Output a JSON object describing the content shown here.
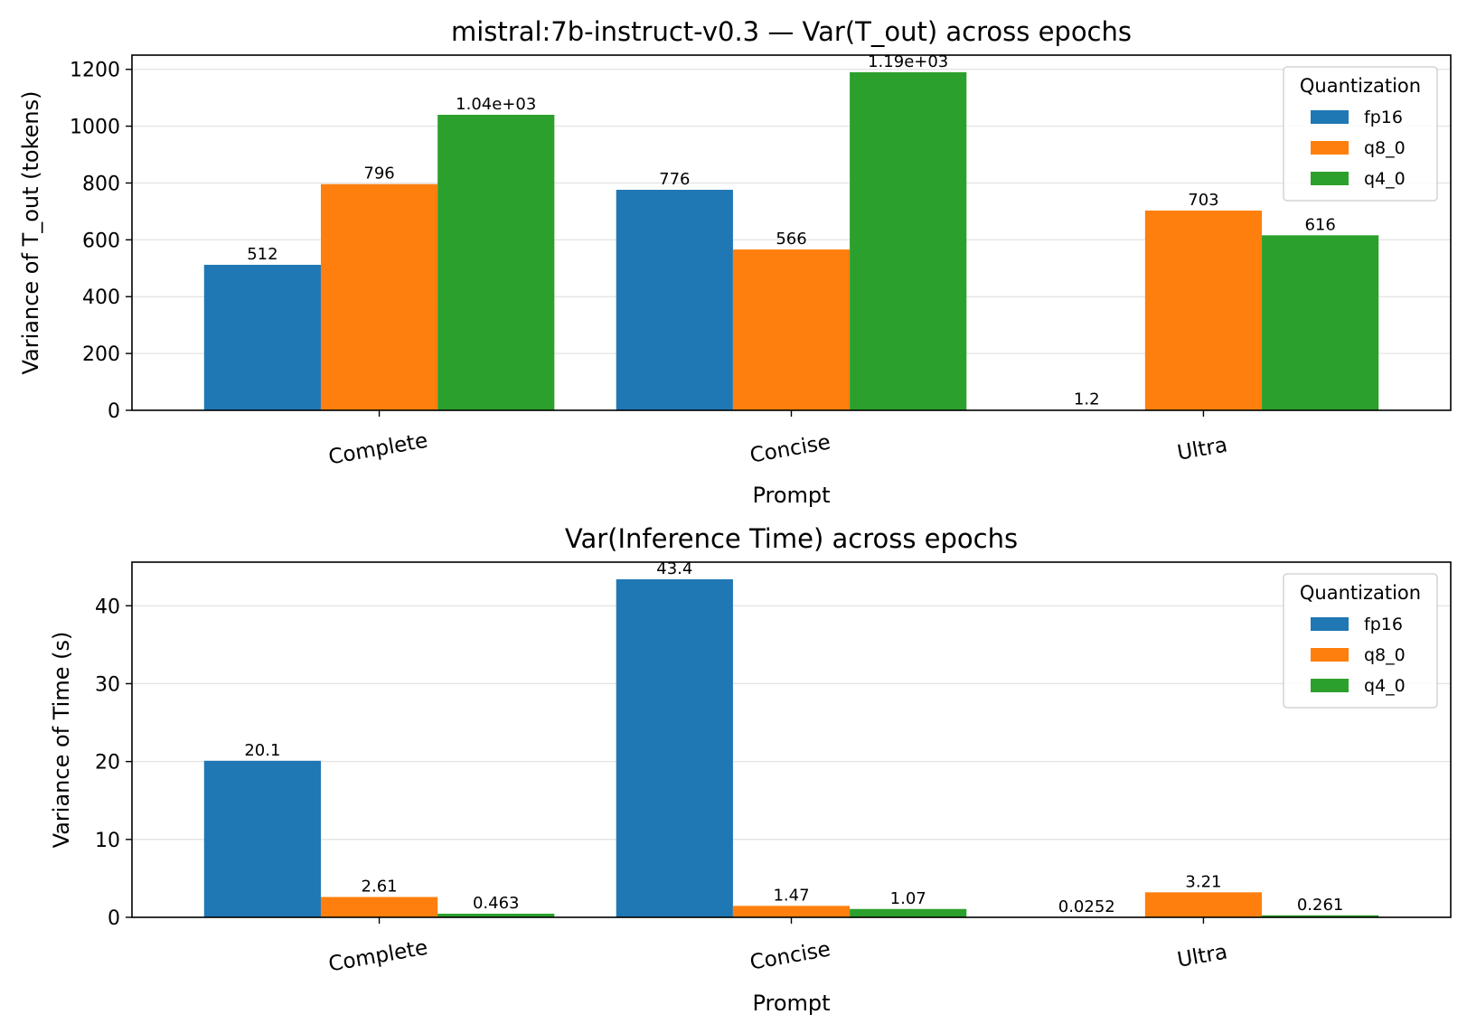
{
  "chart_data": [
    {
      "type": "bar",
      "title": "mistral:7b-instruct-v0.3 — Var(T_out) across epochs",
      "xlabel": "Prompt",
      "ylabel": "Variance of T_out (tokens)",
      "categories": [
        "Complete",
        "Concise",
        "Ultra"
      ],
      "ylim": [
        0,
        1250
      ],
      "yticks": [
        0,
        200,
        400,
        600,
        800,
        1000,
        1200
      ],
      "grid": "horizontal",
      "legend": {
        "title": "Quantization",
        "placement": "top-right"
      },
      "series": [
        {
          "name": "fp16",
          "color": "#1f77b4",
          "values": [
            512,
            776,
            1.2
          ],
          "labels": [
            "512",
            "776",
            "1.2"
          ]
        },
        {
          "name": "q8_0",
          "color": "#ff7f0e",
          "values": [
            796,
            566,
            703
          ],
          "labels": [
            "796",
            "566",
            "703"
          ]
        },
        {
          "name": "q4_0",
          "color": "#2ca02c",
          "values": [
            1040,
            1190,
            616
          ],
          "labels": [
            "1.04e+03",
            "1.19e+03",
            "616"
          ]
        }
      ]
    },
    {
      "type": "bar",
      "title": "Var(Inference Time) across epochs",
      "xlabel": "Prompt",
      "ylabel": "Variance of Time (s)",
      "categories": [
        "Complete",
        "Concise",
        "Ultra"
      ],
      "ylim": [
        0,
        45.6
      ],
      "yticks": [
        0,
        10,
        20,
        30,
        40
      ],
      "grid": "horizontal",
      "legend": {
        "title": "Quantization",
        "placement": "top-right"
      },
      "series": [
        {
          "name": "fp16",
          "color": "#1f77b4",
          "values": [
            20.1,
            43.4,
            0.0252
          ],
          "labels": [
            "20.1",
            "43.4",
            "0.0252"
          ]
        },
        {
          "name": "q8_0",
          "color": "#ff7f0e",
          "values": [
            2.61,
            1.47,
            3.21
          ],
          "labels": [
            "2.61",
            "1.47",
            "3.21"
          ]
        },
        {
          "name": "q4_0",
          "color": "#2ca02c",
          "values": [
            0.463,
            1.07,
            0.261
          ],
          "labels": [
            "0.463",
            "1.07",
            "0.261"
          ]
        }
      ]
    }
  ]
}
